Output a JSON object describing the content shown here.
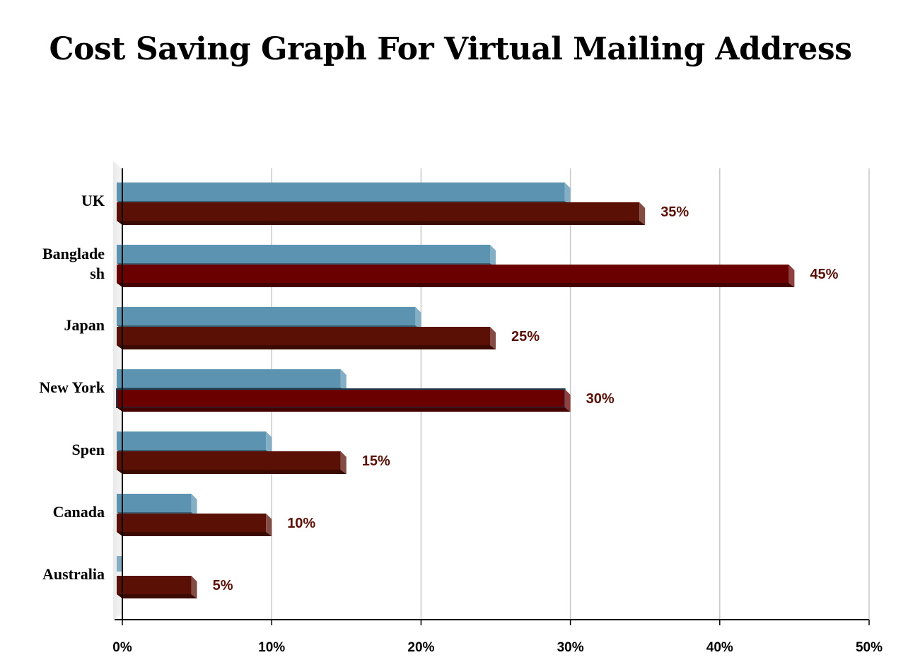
{
  "chart_data": {
    "type": "bar",
    "orientation": "horizontal",
    "title": "Cost Saving Graph For Virtual Mailing Address",
    "categories": [
      "UK",
      "Banglade sh",
      "Japan",
      "New York",
      "Spen",
      "Canada",
      "Australia"
    ],
    "series": [
      {
        "values": [
          30,
          25,
          20,
          15,
          10,
          5,
          0
        ]
      },
      {
        "values": [
          35,
          45,
          25,
          30,
          15,
          10,
          5
        ]
      }
    ],
    "data_labels": [
      "35%",
      "45%",
      "25%",
      "30%",
      "15%",
      "10%",
      "5%"
    ],
    "x_ticks": [
      "0%",
      "10%",
      "20%",
      "30%",
      "40%",
      "50%"
    ],
    "xlim": [
      0,
      50
    ],
    "grid": true,
    "legend": "none",
    "colors": {
      "series_1": "#5b93b0",
      "series_2": "#5a1005",
      "series_2_highlight": "#6a0000",
      "data_label": "#5a1005",
      "grid": "#c8c8c8"
    }
  }
}
